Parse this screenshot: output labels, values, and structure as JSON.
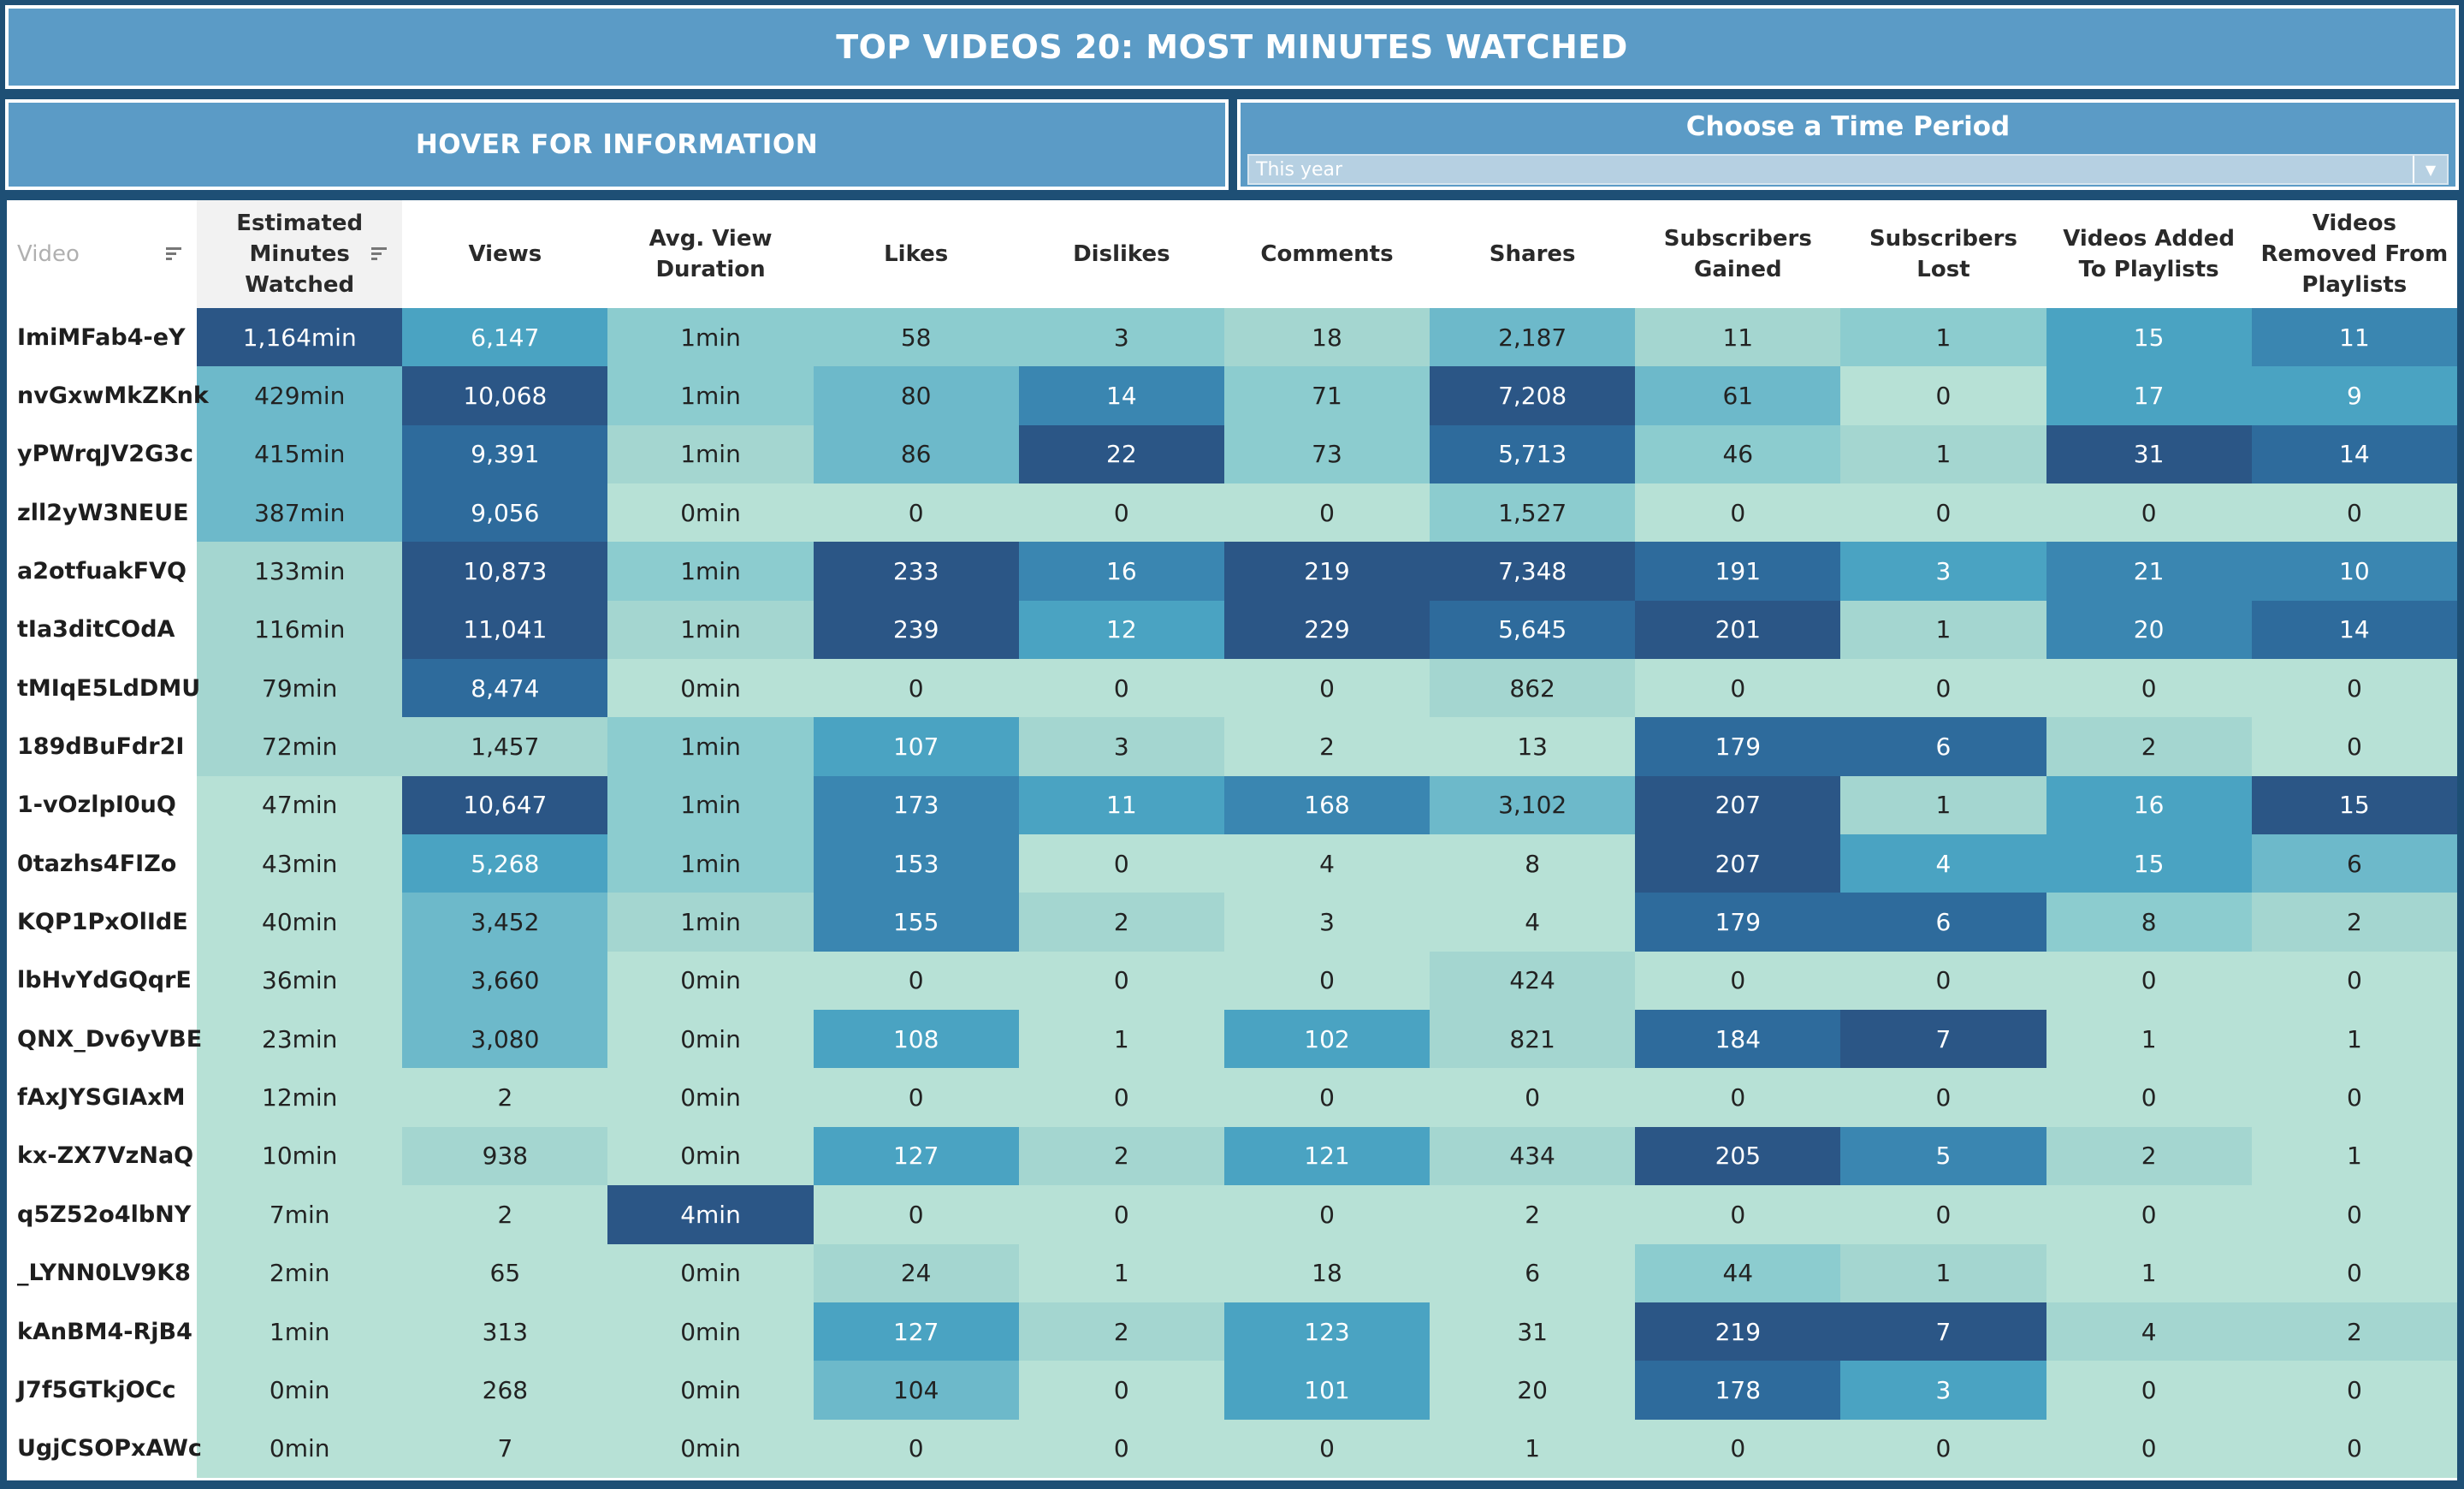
{
  "title": "TOP VIDEOS 20: MOST MINUTES WATCHED",
  "hover_panel": {
    "label": "HOVER FOR INFORMATION"
  },
  "filter": {
    "title": "Choose a Time Period",
    "value": "This year",
    "arrow": "▼"
  },
  "palette": [
    "#b7e1d6",
    "#a4d6d0",
    "#8ccccf",
    "#6db9ca",
    "#4aa3c2",
    "#3a86b1",
    "#2e6b9c",
    "#2b5686"
  ],
  "columns": [
    "Video",
    "Estimated Minutes Watched",
    "Views",
    "Avg. View Duration",
    "Likes",
    "Dislikes",
    "Comments",
    "Shares",
    "Subscribers Gained",
    "Subscribers Lost",
    "Videos Added To Playlists",
    "Videos Removed From Playlists"
  ],
  "rows": [
    {
      "video": "ImiMFab4-eY",
      "values": [
        "1,164min",
        "6,147",
        "1min",
        "58",
        "3",
        "18",
        "2,187",
        "11",
        "1",
        "15",
        "11"
      ],
      "levels": [
        7,
        4,
        2,
        2,
        2,
        1,
        3,
        1,
        2,
        4,
        5
      ]
    },
    {
      "video": "nvGxwMkZKnk",
      "values": [
        "429min",
        "10,068",
        "1min",
        "80",
        "14",
        "71",
        "7,208",
        "61",
        "0",
        "17",
        "9"
      ],
      "levels": [
        3,
        7,
        2,
        3,
        5,
        2,
        7,
        3,
        0,
        4,
        4
      ]
    },
    {
      "video": "yPWrqJV2G3c",
      "values": [
        "415min",
        "9,391",
        "1min",
        "86",
        "22",
        "73",
        "5,713",
        "46",
        "1",
        "31",
        "14"
      ],
      "levels": [
        3,
        6,
        1,
        3,
        7,
        2,
        6,
        2,
        1,
        7,
        6
      ]
    },
    {
      "video": "zll2yW3NEUE",
      "values": [
        "387min",
        "9,056",
        "0min",
        "0",
        "0",
        "0",
        "1,527",
        "0",
        "0",
        "0",
        "0"
      ],
      "levels": [
        3,
        6,
        0,
        0,
        0,
        0,
        2,
        0,
        0,
        0,
        0
      ]
    },
    {
      "video": "a2otfuakFVQ",
      "values": [
        "133min",
        "10,873",
        "1min",
        "233",
        "16",
        "219",
        "7,348",
        "191",
        "3",
        "21",
        "10"
      ],
      "levels": [
        1,
        7,
        2,
        7,
        5,
        7,
        7,
        6,
        4,
        5,
        5
      ]
    },
    {
      "video": "tIa3ditCOdA",
      "values": [
        "116min",
        "11,041",
        "1min",
        "239",
        "12",
        "229",
        "5,645",
        "201",
        "1",
        "20",
        "14"
      ],
      "levels": [
        1,
        7,
        1,
        7,
        4,
        7,
        6,
        7,
        1,
        5,
        6
      ]
    },
    {
      "video": "tMIqE5LdDMU",
      "values": [
        "79min",
        "8,474",
        "0min",
        "0",
        "0",
        "0",
        "862",
        "0",
        "0",
        "0",
        "0"
      ],
      "levels": [
        1,
        6,
        0,
        0,
        0,
        0,
        1,
        0,
        0,
        0,
        0
      ]
    },
    {
      "video": "189dBuFdr2I",
      "values": [
        "72min",
        "1,457",
        "1min",
        "107",
        "3",
        "2",
        "13",
        "179",
        "6",
        "2",
        "0"
      ],
      "levels": [
        1,
        1,
        2,
        4,
        1,
        0,
        0,
        6,
        6,
        1,
        0
      ]
    },
    {
      "video": "1-vOzlpI0uQ",
      "values": [
        "47min",
        "10,647",
        "1min",
        "173",
        "11",
        "168",
        "3,102",
        "207",
        "1",
        "16",
        "15"
      ],
      "levels": [
        0,
        7,
        2,
        5,
        4,
        5,
        3,
        7,
        1,
        4,
        7
      ]
    },
    {
      "video": "0tazhs4FIZo",
      "values": [
        "43min",
        "5,268",
        "1min",
        "153",
        "0",
        "4",
        "8",
        "207",
        "4",
        "15",
        "6"
      ],
      "levels": [
        0,
        4,
        2,
        5,
        0,
        0,
        0,
        7,
        4,
        4,
        3
      ]
    },
    {
      "video": "KQP1PxOlIdE",
      "values": [
        "40min",
        "3,452",
        "1min",
        "155",
        "2",
        "3",
        "4",
        "179",
        "6",
        "8",
        "2"
      ],
      "levels": [
        0,
        3,
        1,
        5,
        1,
        0,
        0,
        6,
        6,
        2,
        1
      ]
    },
    {
      "video": "lbHvYdGQqrE",
      "values": [
        "36min",
        "3,660",
        "0min",
        "0",
        "0",
        "0",
        "424",
        "0",
        "0",
        "0",
        "0"
      ],
      "levels": [
        0,
        3,
        0,
        0,
        0,
        0,
        1,
        0,
        0,
        0,
        0
      ]
    },
    {
      "video": "QNX_Dv6yVBE",
      "values": [
        "23min",
        "3,080",
        "0min",
        "108",
        "1",
        "102",
        "821",
        "184",
        "7",
        "1",
        "1"
      ],
      "levels": [
        0,
        3,
        0,
        4,
        0,
        4,
        1,
        6,
        7,
        0,
        0
      ]
    },
    {
      "video": "fAxJYSGIAxM",
      "values": [
        "12min",
        "2",
        "0min",
        "0",
        "0",
        "0",
        "0",
        "0",
        "0",
        "0",
        "0"
      ],
      "levels": [
        0,
        0,
        0,
        0,
        0,
        0,
        0,
        0,
        0,
        0,
        0
      ]
    },
    {
      "video": "kx-ZX7VzNaQ",
      "values": [
        "10min",
        "938",
        "0min",
        "127",
        "2",
        "121",
        "434",
        "205",
        "5",
        "2",
        "1"
      ],
      "levels": [
        0,
        1,
        0,
        4,
        1,
        4,
        1,
        7,
        5,
        1,
        0
      ]
    },
    {
      "video": "q5Z52o4lbNY",
      "values": [
        "7min",
        "2",
        "4min",
        "0",
        "0",
        "0",
        "2",
        "0",
        "0",
        "0",
        "0"
      ],
      "levels": [
        0,
        0,
        7,
        0,
        0,
        0,
        0,
        0,
        0,
        0,
        0
      ]
    },
    {
      "video": "_LYNN0LV9K8",
      "values": [
        "2min",
        "65",
        "0min",
        "24",
        "1",
        "18",
        "6",
        "44",
        "1",
        "1",
        "0"
      ],
      "levels": [
        0,
        0,
        0,
        1,
        0,
        0,
        0,
        2,
        1,
        0,
        0
      ]
    },
    {
      "video": "kAnBM4-RjB4",
      "values": [
        "1min",
        "313",
        "0min",
        "127",
        "2",
        "123",
        "31",
        "219",
        "7",
        "4",
        "2"
      ],
      "levels": [
        0,
        0,
        0,
        4,
        1,
        4,
        0,
        7,
        7,
        1,
        1
      ]
    },
    {
      "video": "J7f5GTkjOCc",
      "values": [
        "0min",
        "268",
        "0min",
        "104",
        "0",
        "101",
        "20",
        "178",
        "3",
        "0",
        "0"
      ],
      "levels": [
        0,
        0,
        0,
        3,
        0,
        4,
        0,
        6,
        4,
        0,
        0
      ]
    },
    {
      "video": "UgjCSOPxAWc",
      "values": [
        "0min",
        "7",
        "0min",
        "0",
        "0",
        "0",
        "1",
        "0",
        "0",
        "0",
        "0"
      ],
      "levels": [
        0,
        0,
        0,
        0,
        0,
        0,
        0,
        0,
        0,
        0,
        0
      ]
    }
  ]
}
